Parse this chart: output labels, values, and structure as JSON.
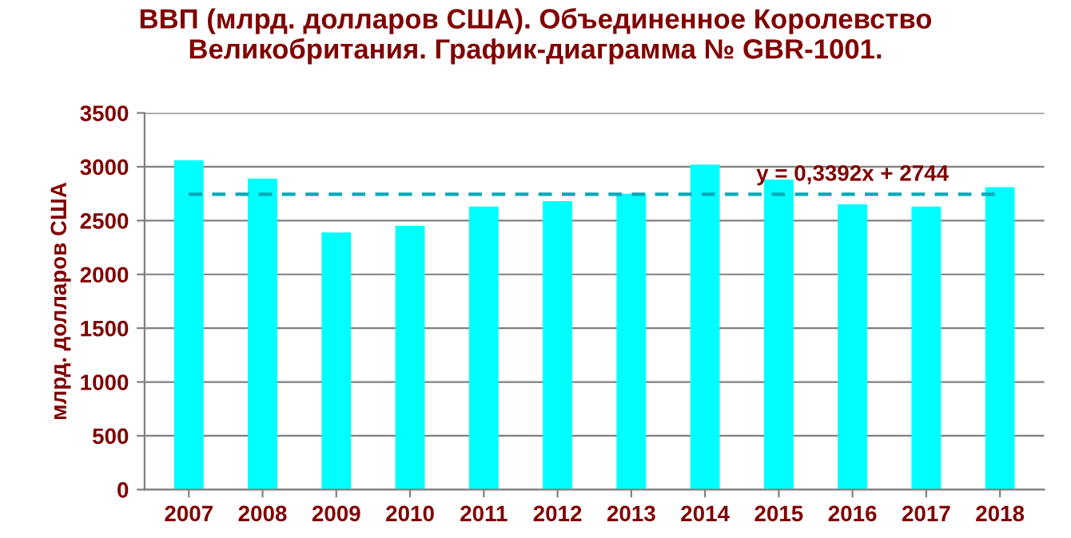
{
  "chart_data": {
    "type": "bar",
    "title": "ВВП (млрд. долларов США). Объединенное Королевство\nВеликобритания. График-диаграмма № GBR-1001.",
    "ylabel": "млрд. долларов США",
    "categories": [
      "2007",
      "2008",
      "2009",
      "2010",
      "2011",
      "2012",
      "2013",
      "2014",
      "2015",
      "2016",
      "2017",
      "2018"
    ],
    "series": [
      {
        "color": "#00ffff",
        "values": [
          3060,
          2890,
          2390,
          2450,
          2630,
          2680,
          2750,
          3020,
          2880,
          2650,
          2630,
          2810
        ]
      },
      {
        "type": "line",
        "color": "#00a8b8",
        "line_style": "dashed",
        "values": [
          2745,
          2745,
          2745,
          2745,
          2745,
          2745,
          2745,
          2745,
          2745,
          2745,
          2745,
          2745
        ]
      }
    ],
    "annotations": [
      {
        "text": "y = 0,3392x + 2744",
        "x": "2016",
        "y": 2745
      }
    ],
    "ylim": [
      0,
      3500
    ],
    "yticks": [
      0,
      500,
      1000,
      1500,
      2000,
      2500,
      3000,
      3500
    ],
    "grid": "y"
  }
}
